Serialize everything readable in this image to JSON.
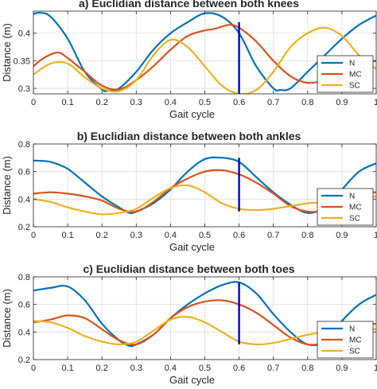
{
  "colors": {
    "N": "#0072BD",
    "MC": "#D95319",
    "SC": "#EDB120",
    "marker": "#0000CD",
    "grid": "#DCDCDC",
    "axis": "#262626"
  },
  "chart_data": [
    {
      "type": "line",
      "title": "a) Euclidian distance between both knees",
      "xlabel": "Gait cycle",
      "ylabel": "Distance (m)",
      "xlim": [
        0,
        1
      ],
      "ylim": [
        0.29,
        0.44
      ],
      "xticks": [
        "0",
        "0.1",
        "0.2",
        "0.3",
        "0.4",
        "0.5",
        "0.6",
        "0.7",
        "0.8",
        "0.9",
        "1"
      ],
      "yticks": [
        0.3,
        0.35,
        0.4
      ],
      "ytick_labels": [
        "0.3",
        "0.35",
        "0.4"
      ],
      "grid": true,
      "legend_position": "bottom-right",
      "vline": {
        "x": 0.6,
        "y0": 0.29,
        "y1": 0.42
      },
      "series": [
        {
          "name": "N",
          "x": [
            0,
            0.02,
            0.05,
            0.1,
            0.15,
            0.2,
            0.22,
            0.25,
            0.3,
            0.35,
            0.4,
            0.45,
            0.5,
            0.55,
            0.6,
            0.65,
            0.7,
            0.72,
            0.75,
            0.8,
            0.85,
            0.9,
            0.95,
            1
          ],
          "y": [
            0.435,
            0.437,
            0.43,
            0.39,
            0.33,
            0.298,
            0.296,
            0.3,
            0.33,
            0.37,
            0.4,
            0.42,
            0.436,
            0.43,
            0.4,
            0.34,
            0.3,
            0.297,
            0.3,
            0.33,
            0.36,
            0.39,
            0.415,
            0.432
          ]
        },
        {
          "name": "MC",
          "x": [
            0,
            0.03,
            0.07,
            0.1,
            0.15,
            0.2,
            0.25,
            0.3,
            0.35,
            0.4,
            0.45,
            0.5,
            0.53,
            0.57,
            0.6,
            0.65,
            0.7,
            0.75,
            0.8,
            0.85,
            0.9,
            0.95,
            1
          ],
          "y": [
            0.34,
            0.355,
            0.365,
            0.355,
            0.33,
            0.305,
            0.298,
            0.315,
            0.34,
            0.37,
            0.395,
            0.405,
            0.408,
            0.415,
            0.41,
            0.385,
            0.35,
            0.322,
            0.31,
            0.315,
            0.33,
            0.345,
            0.35
          ]
        },
        {
          "name": "SC",
          "x": [
            0,
            0.05,
            0.1,
            0.15,
            0.2,
            0.25,
            0.3,
            0.35,
            0.4,
            0.45,
            0.5,
            0.55,
            0.6,
            0.65,
            0.7,
            0.75,
            0.8,
            0.85,
            0.9,
            0.95,
            1
          ],
          "y": [
            0.325,
            0.345,
            0.345,
            0.32,
            0.3,
            0.295,
            0.315,
            0.36,
            0.388,
            0.375,
            0.34,
            0.305,
            0.29,
            0.297,
            0.33,
            0.375,
            0.4,
            0.41,
            0.395,
            0.36,
            0.335
          ]
        }
      ]
    },
    {
      "type": "line",
      "title": "b) Euclidian distance between both ankles",
      "xlabel": "Gait cycle",
      "ylabel": "Distance (m)",
      "xlim": [
        0,
        1
      ],
      "ylim": [
        0.2,
        0.8
      ],
      "xticks": [
        "0",
        "0.1",
        "0.2",
        "0.3",
        "0.4",
        "0.5",
        "0.6",
        "0.7",
        "0.8",
        "0.9",
        "1"
      ],
      "yticks": [
        0.2,
        0.4,
        0.6,
        0.8
      ],
      "ytick_labels": [
        "0.2",
        "0.4",
        "0.6",
        "0.8"
      ],
      "grid": true,
      "legend_position": "bottom-right",
      "vline": {
        "x": 0.6,
        "y0": 0.31,
        "y1": 0.7
      },
      "series": [
        {
          "name": "N",
          "x": [
            0,
            0.05,
            0.1,
            0.15,
            0.2,
            0.25,
            0.28,
            0.3,
            0.35,
            0.4,
            0.45,
            0.5,
            0.55,
            0.6,
            0.65,
            0.7,
            0.75,
            0.8,
            0.85,
            0.9,
            0.95,
            1
          ],
          "y": [
            0.68,
            0.67,
            0.62,
            0.52,
            0.42,
            0.34,
            0.3,
            0.31,
            0.37,
            0.47,
            0.6,
            0.69,
            0.7,
            0.67,
            0.56,
            0.45,
            0.36,
            0.3,
            0.34,
            0.47,
            0.6,
            0.66
          ]
        },
        {
          "name": "MC",
          "x": [
            0,
            0.05,
            0.1,
            0.15,
            0.2,
            0.25,
            0.3,
            0.35,
            0.4,
            0.45,
            0.5,
            0.55,
            0.6,
            0.65,
            0.7,
            0.75,
            0.8,
            0.85,
            0.9,
            0.95,
            1
          ],
          "y": [
            0.44,
            0.45,
            0.44,
            0.42,
            0.39,
            0.33,
            0.31,
            0.38,
            0.48,
            0.55,
            0.6,
            0.61,
            0.58,
            0.52,
            0.44,
            0.35,
            0.31,
            0.32,
            0.38,
            0.44,
            0.45
          ]
        },
        {
          "name": "SC",
          "x": [
            0,
            0.05,
            0.1,
            0.15,
            0.2,
            0.25,
            0.3,
            0.35,
            0.4,
            0.45,
            0.5,
            0.55,
            0.6,
            0.65,
            0.7,
            0.75,
            0.8,
            0.85,
            0.9,
            0.95,
            1
          ],
          "y": [
            0.4,
            0.38,
            0.34,
            0.31,
            0.29,
            0.3,
            0.33,
            0.41,
            0.48,
            0.5,
            0.45,
            0.37,
            0.33,
            0.32,
            0.33,
            0.35,
            0.37,
            0.38,
            0.4,
            0.41,
            0.42
          ]
        }
      ]
    },
    {
      "type": "line",
      "title": "c) Euclidian distance between both toes",
      "xlabel": "Gait cycle",
      "ylabel": "Distance (m)",
      "xlim": [
        0,
        1
      ],
      "ylim": [
        0.2,
        0.8
      ],
      "xticks": [
        "0",
        "0.1",
        "0.2",
        "0.3",
        "0.4",
        "0.5",
        "0.6",
        "0.7",
        "0.8",
        "0.9",
        "1"
      ],
      "yticks": [
        0.2,
        0.4,
        0.6,
        0.8
      ],
      "ytick_labels": [
        "0.2",
        "0.4",
        "0.6",
        "0.8"
      ],
      "grid": true,
      "legend_position": "bottom-right",
      "vline": {
        "x": 0.6,
        "y0": 0.31,
        "y1": 0.76
      },
      "series": [
        {
          "name": "N",
          "x": [
            0,
            0.05,
            0.1,
            0.15,
            0.2,
            0.25,
            0.28,
            0.3,
            0.35,
            0.4,
            0.45,
            0.5,
            0.55,
            0.6,
            0.65,
            0.7,
            0.75,
            0.8,
            0.85,
            0.9,
            0.95,
            1
          ],
          "y": [
            0.7,
            0.72,
            0.73,
            0.63,
            0.46,
            0.34,
            0.3,
            0.31,
            0.38,
            0.5,
            0.6,
            0.68,
            0.74,
            0.76,
            0.68,
            0.53,
            0.4,
            0.31,
            0.33,
            0.48,
            0.6,
            0.67
          ]
        },
        {
          "name": "MC",
          "x": [
            0,
            0.05,
            0.1,
            0.15,
            0.2,
            0.25,
            0.3,
            0.35,
            0.4,
            0.45,
            0.5,
            0.55,
            0.6,
            0.65,
            0.7,
            0.75,
            0.8,
            0.85,
            0.9,
            0.95,
            1
          ],
          "y": [
            0.47,
            0.49,
            0.52,
            0.5,
            0.42,
            0.34,
            0.31,
            0.38,
            0.5,
            0.58,
            0.62,
            0.63,
            0.6,
            0.54,
            0.45,
            0.36,
            0.31,
            0.32,
            0.38,
            0.44,
            0.46
          ]
        },
        {
          "name": "SC",
          "x": [
            0,
            0.05,
            0.1,
            0.15,
            0.2,
            0.25,
            0.3,
            0.35,
            0.4,
            0.45,
            0.5,
            0.55,
            0.6,
            0.65,
            0.7,
            0.75,
            0.8,
            0.85,
            0.9,
            0.95,
            1
          ],
          "y": [
            0.48,
            0.47,
            0.43,
            0.37,
            0.33,
            0.31,
            0.33,
            0.41,
            0.49,
            0.51,
            0.47,
            0.4,
            0.33,
            0.31,
            0.32,
            0.35,
            0.38,
            0.4,
            0.41,
            0.42,
            0.42
          ]
        }
      ]
    }
  ]
}
